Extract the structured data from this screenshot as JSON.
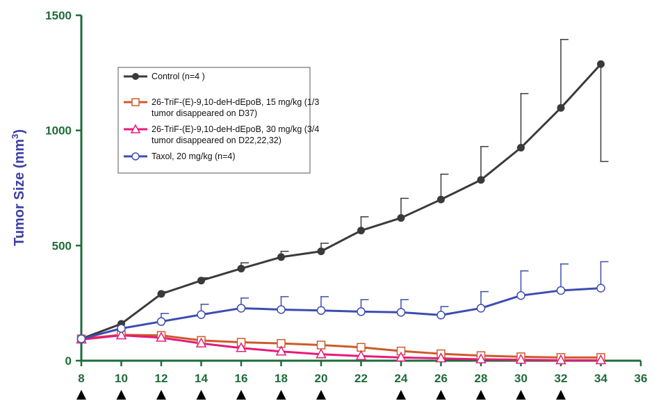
{
  "chart_data": {
    "type": "line",
    "title": "",
    "xlabel": "",
    "ylabel": "Tumor Size (mm³)",
    "ylabel_main": "Tumor Size (mm",
    "ylabel_sup": "3",
    "ylabel_close": ")",
    "xlim": [
      8,
      36
    ],
    "ylim": [
      0,
      1500
    ],
    "x_ticks": [
      "8",
      "10",
      "12",
      "14",
      "16",
      "18",
      "20",
      "22",
      "24",
      "26",
      "28",
      "30",
      "32",
      "34",
      "36"
    ],
    "y_ticks": [
      "0",
      "500",
      "1000",
      "1500"
    ],
    "dosing_days": [
      8,
      10,
      12,
      14,
      16,
      18,
      20,
      24,
      26,
      28,
      30,
      32
    ],
    "grid": false,
    "legend_position": "upper-left",
    "series": [
      {
        "name": "Control (n=4 )",
        "color": "#3a3a3a",
        "marker": "filled-circle",
        "x": [
          8,
          10,
          12,
          14,
          16,
          18,
          20,
          22,
          24,
          26,
          28,
          30,
          32,
          34
        ],
        "y": [
          95,
          160,
          290,
          348,
          400,
          450,
          475,
          565,
          620,
          700,
          785,
          925,
          1098,
          1288
        ],
        "err_upper": [
          null,
          null,
          300,
          360,
          425,
          475,
          510,
          625,
          705,
          810,
          930,
          1160,
          1395,
          null
        ],
        "err_lower": [
          null,
          null,
          null,
          null,
          null,
          null,
          null,
          null,
          null,
          null,
          null,
          null,
          null,
          865
        ]
      },
      {
        "name_lines": [
          "26-TriF-(E)-9,10-deH-dEpoB, 15 mg/kg (1/3",
          "tumor disappeared on D37)"
        ],
        "color": "#cc5a2a",
        "marker": "open-square",
        "x": [
          8,
          10,
          12,
          14,
          16,
          18,
          20,
          22,
          24,
          26,
          28,
          30,
          32,
          34
        ],
        "y": [
          95,
          112,
          110,
          88,
          80,
          75,
          68,
          58,
          42,
          30,
          22,
          17,
          14,
          14
        ]
      },
      {
        "name_lines": [
          "26-TriF-(E)-9,10-deH-dEpoB, 30 mg/kg (3/4",
          "tumor disappeared on D22,22,32)"
        ],
        "color": "#e8197a",
        "marker": "open-triangle",
        "x": [
          8,
          10,
          12,
          14,
          16,
          18,
          20,
          22,
          24,
          26,
          28,
          30,
          32,
          34
        ],
        "y": [
          92,
          110,
          100,
          75,
          55,
          40,
          28,
          20,
          14,
          10,
          6,
          4,
          2,
          2
        ]
      },
      {
        "name": "Taxol, 20 mg/kg (n=4)",
        "color": "#3c4db0",
        "marker": "open-circle",
        "x": [
          8,
          10,
          12,
          14,
          16,
          18,
          20,
          22,
          24,
          26,
          28,
          30,
          32,
          34
        ],
        "y": [
          95,
          140,
          170,
          200,
          228,
          222,
          218,
          213,
          210,
          198,
          228,
          283,
          305,
          315
        ],
        "err_upper": [
          null,
          null,
          205,
          245,
          272,
          278,
          278,
          265,
          265,
          235,
          300,
          390,
          420,
          430
        ]
      }
    ]
  }
}
